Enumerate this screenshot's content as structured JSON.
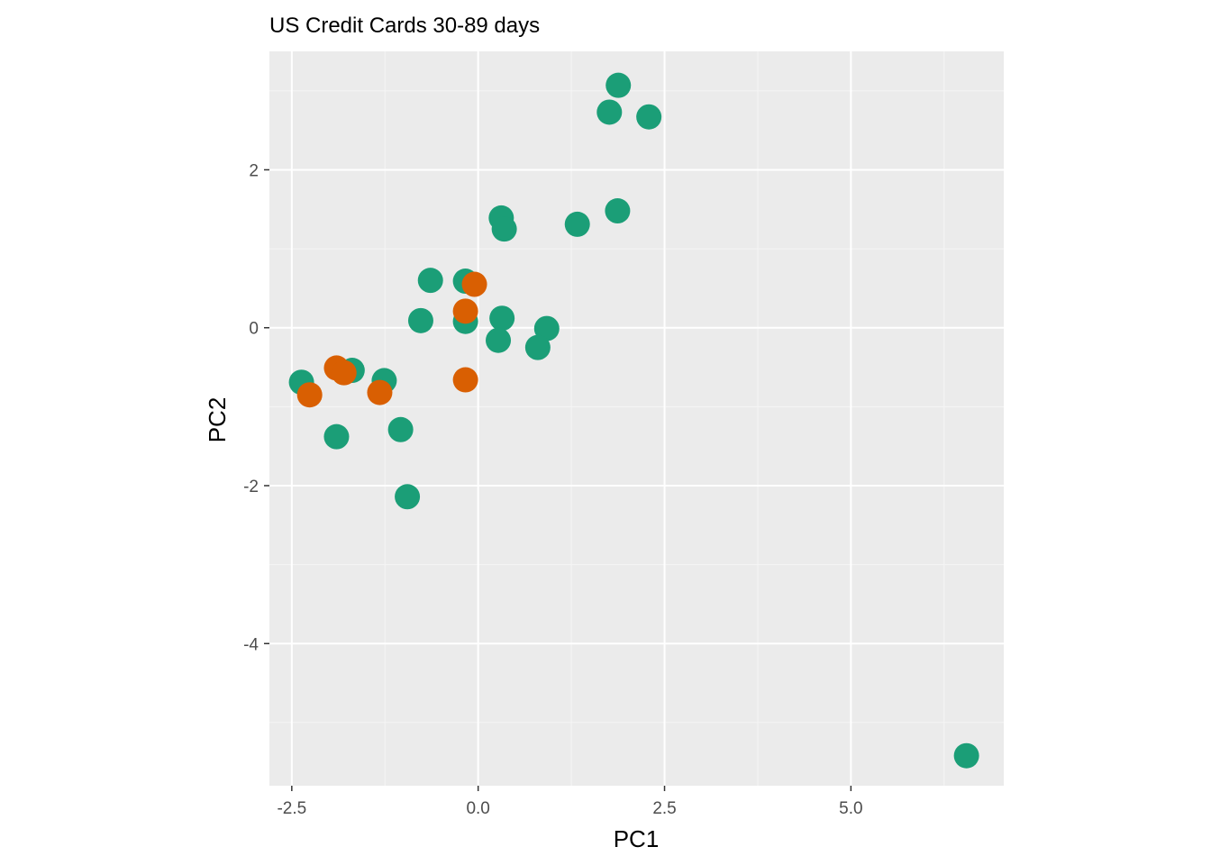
{
  "chart_data": {
    "type": "scatter",
    "title": "US Credit Cards 30-89 days",
    "xlabel": "PC1",
    "ylabel": "PC2",
    "xlim": [
      -2.8,
      7.05
    ],
    "ylim": [
      -5.8,
      3.5
    ],
    "x_ticks": [
      -2.5,
      0.0,
      2.5,
      5.0
    ],
    "x_tick_labels": [
      "-2.5",
      "0.0",
      "2.5",
      "5.0"
    ],
    "y_ticks": [
      -4,
      -2,
      0,
      2
    ],
    "y_tick_labels": [
      "-4",
      "-2",
      "0",
      "2"
    ],
    "grid": true,
    "legend": "none",
    "colors": {
      "panel": "#ebebeb",
      "grid_major": "#ffffff",
      "grid_minor": "#f5f5f5",
      "tick": "#333333"
    },
    "series": [
      {
        "color": "#1b9e77",
        "points": [
          {
            "x": 1.88,
            "y": 3.07
          },
          {
            "x": 1.76,
            "y": 2.73
          },
          {
            "x": 2.29,
            "y": 2.67
          },
          {
            "x": 1.87,
            "y": 1.48
          },
          {
            "x": 0.31,
            "y": 1.39
          },
          {
            "x": 0.35,
            "y": 1.25
          },
          {
            "x": 1.33,
            "y": 1.31
          },
          {
            "x": -0.64,
            "y": 0.6
          },
          {
            "x": -0.17,
            "y": 0.59
          },
          {
            "x": -0.77,
            "y": 0.09
          },
          {
            "x": -0.17,
            "y": 0.08
          },
          {
            "x": 0.32,
            "y": 0.12
          },
          {
            "x": 0.92,
            "y": -0.01
          },
          {
            "x": 0.27,
            "y": -0.16
          },
          {
            "x": 0.8,
            "y": -0.25
          },
          {
            "x": -2.37,
            "y": -0.69
          },
          {
            "x": -1.69,
            "y": -0.54
          },
          {
            "x": -1.26,
            "y": -0.67
          },
          {
            "x": -1.9,
            "y": -1.38
          },
          {
            "x": -1.04,
            "y": -1.29
          },
          {
            "x": -0.95,
            "y": -2.14
          },
          {
            "x": 6.55,
            "y": -5.42
          }
        ]
      },
      {
        "color": "#d95f02",
        "points": [
          {
            "x": -0.05,
            "y": 0.55
          },
          {
            "x": -0.17,
            "y": 0.21
          },
          {
            "x": -0.17,
            "y": -0.66
          },
          {
            "x": -1.9,
            "y": -0.51
          },
          {
            "x": -1.8,
            "y": -0.57
          },
          {
            "x": -1.32,
            "y": -0.82
          },
          {
            "x": -2.26,
            "y": -0.85
          }
        ]
      }
    ]
  }
}
